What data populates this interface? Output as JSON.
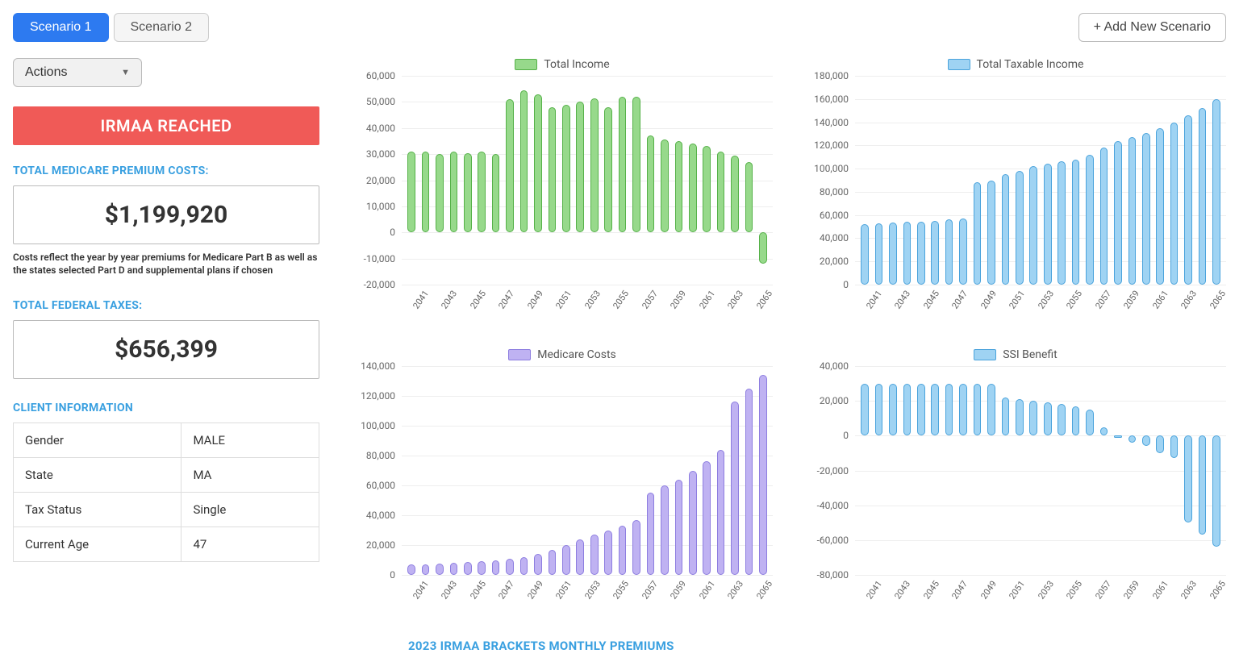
{
  "tabs": {
    "items": [
      "Scenario 1",
      "Scenario 2"
    ],
    "active_index": 0
  },
  "add_scenario_label": "+ Add New Scenario",
  "actions_label": "Actions",
  "alert_text": "IRMAA REACHED",
  "alert_bg": "#f05a57",
  "medicare_premium": {
    "label": "TOTAL MEDICARE PREMIUM COSTS:",
    "value": "$1,199,920",
    "note": "Costs reflect the year by year premiums for Medicare Part B as well as the states selected Part D and supplemental plans if chosen"
  },
  "federal_taxes": {
    "label": "TOTAL FEDERAL TAXES:",
    "value": "$656,399"
  },
  "client_info": {
    "label": "CLIENT INFORMATION",
    "rows": [
      [
        "Gender",
        "MALE"
      ],
      [
        "State",
        "MA"
      ],
      [
        "Tax Status",
        "Single"
      ],
      [
        "Current Age",
        "47"
      ]
    ]
  },
  "x_years": [
    "2041",
    "2042",
    "2043",
    "2044",
    "2045",
    "2046",
    "2047",
    "2048",
    "2049",
    "2050",
    "2051",
    "2052",
    "2053",
    "2054",
    "2055",
    "2056",
    "2057",
    "2058",
    "2059",
    "2060",
    "2061",
    "2062",
    "2063",
    "2064",
    "2065",
    "2066"
  ],
  "x_shown_years": [
    "2041",
    "2043",
    "2045",
    "2047",
    "2049",
    "2051",
    "2053",
    "2055",
    "2057",
    "2059",
    "2061",
    "2063",
    "2065"
  ],
  "charts": {
    "total_income": {
      "legend": "Total Income",
      "fill": "#97d98b",
      "stroke": "#55b148",
      "ymin": -20000,
      "ymax": 60000,
      "ystep": 10000,
      "values": [
        31000,
        31000,
        30000,
        31000,
        30500,
        31000,
        30000,
        51000,
        54500,
        53000,
        48000,
        49000,
        50000,
        51500,
        48000,
        52000,
        52000,
        37000,
        35500,
        35000,
        34000,
        33000,
        31000,
        29500,
        27000,
        -12000
      ]
    },
    "total_taxable_income": {
      "legend": "Total Taxable Income",
      "fill": "#9fd3f3",
      "stroke": "#4aa3dc",
      "ymin": 0,
      "ymax": 180000,
      "ystep": 20000,
      "values": [
        52000,
        53000,
        53500,
        54000,
        54500,
        55000,
        56000,
        57000,
        88000,
        90000,
        95000,
        98000,
        102000,
        104000,
        106000,
        108000,
        112000,
        118000,
        124000,
        127000,
        131000,
        135000,
        140000,
        146000,
        152000,
        160000
      ]
    },
    "medicare_costs": {
      "legend": "Medicare Costs",
      "fill": "#bfb2f2",
      "stroke": "#8d7de0",
      "ymin": 0,
      "ymax": 140000,
      "ystep": 20000,
      "values": [
        7000,
        7000,
        7500,
        8000,
        8500,
        9000,
        10000,
        11000,
        12000,
        14000,
        17000,
        20000,
        24000,
        27000,
        30000,
        33000,
        37000,
        55000,
        60000,
        64000,
        70000,
        76000,
        84000,
        116000,
        125000,
        134000
      ]
    },
    "ssi_benefit": {
      "legend": "SSI Benefit",
      "fill": "#9fd3f3",
      "stroke": "#4aa3dc",
      "ymin": -80000,
      "ymax": 40000,
      "ystep": 20000,
      "values": [
        30000,
        30000,
        30000,
        30000,
        30000,
        30000,
        30000,
        30000,
        30000,
        30000,
        22000,
        21000,
        20000,
        19000,
        18000,
        17000,
        15000,
        5000,
        -1000,
        -4000,
        -6000,
        -10000,
        -13000,
        -50000,
        -57000,
        -64000
      ]
    }
  },
  "bottom_caption": "2023 IRMAA BRACKETS MONTHLY PREMIUMS",
  "section_label_color": "#3aa0e0",
  "grid_color": "#eeeeee"
}
